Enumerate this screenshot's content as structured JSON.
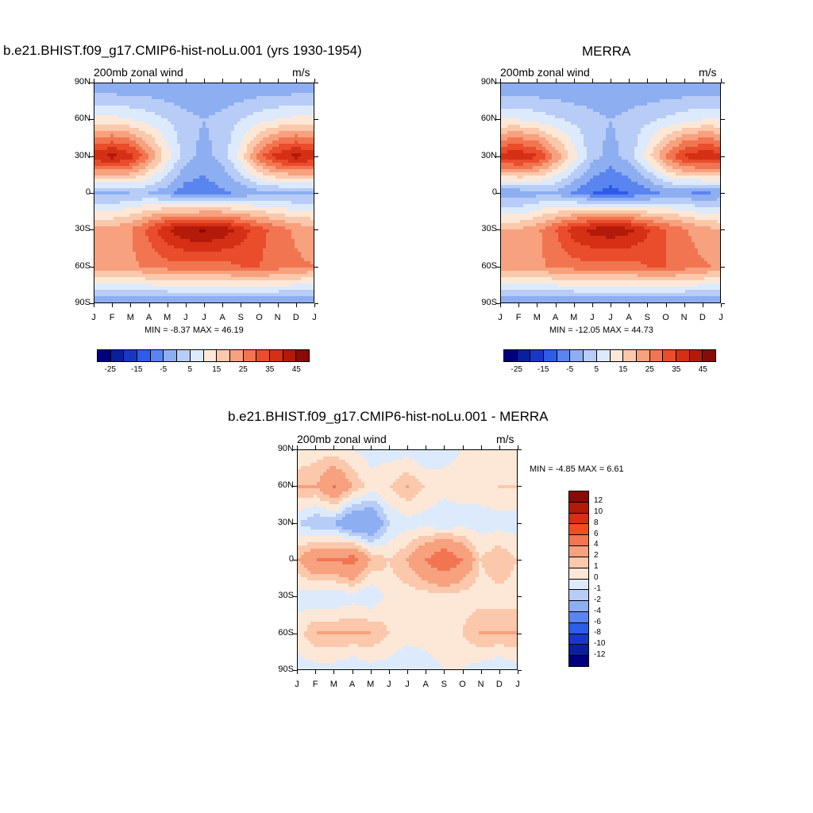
{
  "panels": [
    {
      "title": "b.e21.BHIST.f09_g17.CMIP6-hist-noLu.001 (yrs 1930-1954)",
      "left_label": "200mb zonal wind",
      "right_label": "m/s",
      "stats": "MIN =  -8.37 MAX =  46.19"
    },
    {
      "title": "MERRA",
      "left_label": "200mb zonal wind",
      "right_label": "m/s",
      "stats": "MIN = -12.05 MAX =  44.73"
    },
    {
      "title": "b.e21.BHIST.f09_g17.CMIP6-hist-noLu.001 - MERRA",
      "left_label": "200mb zonal wind",
      "right_label": "m/s",
      "stats": "MIN =  -4.85 MAX =   6.61"
    }
  ],
  "x_ticks": [
    "J",
    "F",
    "M",
    "A",
    "M",
    "J",
    "J",
    "A",
    "S",
    "O",
    "N",
    "D",
    "J"
  ],
  "y_ticks": [
    "90N",
    "60N",
    "30N",
    "0",
    "30S",
    "60S",
    "90S"
  ],
  "colorbar_abs": {
    "labels": [
      "-25",
      "-15",
      "-5",
      "5",
      "15",
      "25",
      "35",
      "45"
    ],
    "colors": [
      "#00007f",
      "#0a1f9c",
      "#1838c4",
      "#2e5ce8",
      "#5a84f0",
      "#8eaef2",
      "#b7cdf7",
      "#ddeafb",
      "#fde8d8",
      "#fbc8ab",
      "#f7a17e",
      "#f27551",
      "#e94d2c",
      "#d53015",
      "#b41a0a",
      "#8a0a05"
    ]
  },
  "colorbar_diff": {
    "labels": [
      "12",
      "10",
      "8",
      "6",
      "4",
      "2",
      "1",
      "0",
      "-1",
      "-2",
      "-4",
      "-6",
      "-8",
      "-10",
      "-12"
    ],
    "colors": [
      "#8a0a05",
      "#b41a0a",
      "#d53015",
      "#f04e1e",
      "#f27551",
      "#f7a17e",
      "#fbc8ab",
      "#fde8d8",
      "#ddeafb",
      "#b7cdf7",
      "#8eaef2",
      "#5a84f0",
      "#2e5ce8",
      "#1838c4",
      "#0a1f9c",
      "#00007f"
    ]
  },
  "chart_data": [
    {
      "type": "heatmap",
      "title": "b.e21.BHIST.f09_g17.CMIP6-hist-noLu.001 (yrs 1930-1954)",
      "xlabel": "",
      "ylabel": "",
      "x_categories": [
        "J",
        "F",
        "M",
        "A",
        "M",
        "J",
        "J",
        "A",
        "S",
        "O",
        "N",
        "D",
        "J"
      ],
      "y_categories": [
        "90N",
        "60N",
        "30N",
        "0",
        "30S",
        "60S",
        "90S"
      ],
      "values": [
        [
          -5,
          -5,
          -5,
          -5,
          -5,
          -5,
          -5,
          -5,
          -5,
          -5,
          -5,
          -5,
          -5
        ],
        [
          12,
          12,
          10,
          8,
          5,
          2,
          0,
          2,
          5,
          8,
          10,
          12,
          12
        ],
        [
          40,
          42,
          38,
          25,
          12,
          2,
          -2,
          2,
          12,
          28,
          38,
          42,
          40
        ],
        [
          -2,
          -2,
          0,
          0,
          -3,
          -8,
          -8,
          -6,
          -4,
          -2,
          -2,
          -2,
          -2
        ],
        [
          22,
          22,
          25,
          32,
          40,
          45,
          46,
          44,
          38,
          32,
          28,
          24,
          22
        ],
        [
          25,
          24,
          24,
          26,
          28,
          28,
          28,
          28,
          30,
          30,
          28,
          26,
          25
        ],
        [
          -5,
          -5,
          -5,
          -5,
          -5,
          -5,
          -5,
          -5,
          -5,
          -5,
          -5,
          -5,
          -5
        ]
      ],
      "units": "m/s",
      "min": -8.37,
      "max": 46.19
    },
    {
      "type": "heatmap",
      "title": "MERRA",
      "xlabel": "",
      "ylabel": "",
      "x_categories": [
        "J",
        "F",
        "M",
        "A",
        "M",
        "J",
        "J",
        "A",
        "S",
        "O",
        "N",
        "D",
        "J"
      ],
      "y_categories": [
        "90N",
        "60N",
        "30N",
        "0",
        "30S",
        "60S",
        "90S"
      ],
      "values": [
        [
          -5,
          -5,
          -5,
          -5,
          -5,
          -5,
          -5,
          -5,
          -5,
          -5,
          -5,
          -5,
          -5
        ],
        [
          10,
          10,
          8,
          6,
          4,
          2,
          0,
          2,
          4,
          6,
          8,
          10,
          10
        ],
        [
          38,
          40,
          36,
          24,
          12,
          2,
          -2,
          2,
          12,
          26,
          36,
          40,
          38
        ],
        [
          -4,
          -4,
          -2,
          -2,
          -6,
          -10,
          -12,
          -10,
          -8,
          -4,
          -4,
          -6,
          -4
        ],
        [
          20,
          20,
          24,
          30,
          38,
          42,
          44,
          42,
          36,
          30,
          26,
          22,
          20
        ],
        [
          24,
          24,
          24,
          26,
          28,
          28,
          28,
          28,
          30,
          30,
          28,
          26,
          24
        ],
        [
          -5,
          -5,
          -5,
          -5,
          -5,
          -5,
          -5,
          -5,
          -5,
          -5,
          -5,
          -5,
          -5
        ]
      ],
      "units": "m/s",
      "min": -12.05,
      "max": 44.73
    },
    {
      "type": "heatmap",
      "title": "b.e21.BHIST.f09_g17.CMIP6-hist-noLu.001 - MERRA",
      "xlabel": "",
      "ylabel": "",
      "x_categories": [
        "J",
        "F",
        "M",
        "A",
        "M",
        "J",
        "J",
        "A",
        "S",
        "O",
        "N",
        "D",
        "J"
      ],
      "y_categories": [
        "90N",
        "60N",
        "30N",
        "0",
        "30S",
        "60S",
        "90S"
      ],
      "values": [
        [
          0,
          0.5,
          0.5,
          0,
          -0.5,
          -0.5,
          -0.5,
          -1,
          -0.5,
          0,
          0.5,
          0,
          0
        ],
        [
          2,
          2,
          4,
          2,
          0.5,
          1,
          2,
          1,
          0.5,
          0.5,
          0.5,
          1,
          1
        ],
        [
          -1,
          -2,
          -2,
          -4,
          -4,
          -1,
          -0.5,
          -0.5,
          -1,
          -0.5,
          -0.5,
          -0.5,
          -0.5
        ],
        [
          2,
          4,
          4,
          5,
          2,
          1,
          2,
          4,
          6,
          4,
          1,
          2,
          1
        ],
        [
          -0.5,
          -1,
          -1,
          -0.5,
          -1,
          0.5,
          0.5,
          0.5,
          0.5,
          0.5,
          0.5,
          0.5,
          0.5
        ],
        [
          0.5,
          2,
          2,
          2,
          2,
          1,
          0.5,
          0.5,
          0.5,
          1,
          2,
          2,
          2
        ],
        [
          -0.5,
          -0.5,
          -0.5,
          -1,
          -0.5,
          -0.5,
          -1,
          -0.5,
          0,
          0,
          -0.5,
          -1,
          -0.5
        ]
      ],
      "units": "m/s",
      "min": -4.85,
      "max": 6.61
    }
  ]
}
